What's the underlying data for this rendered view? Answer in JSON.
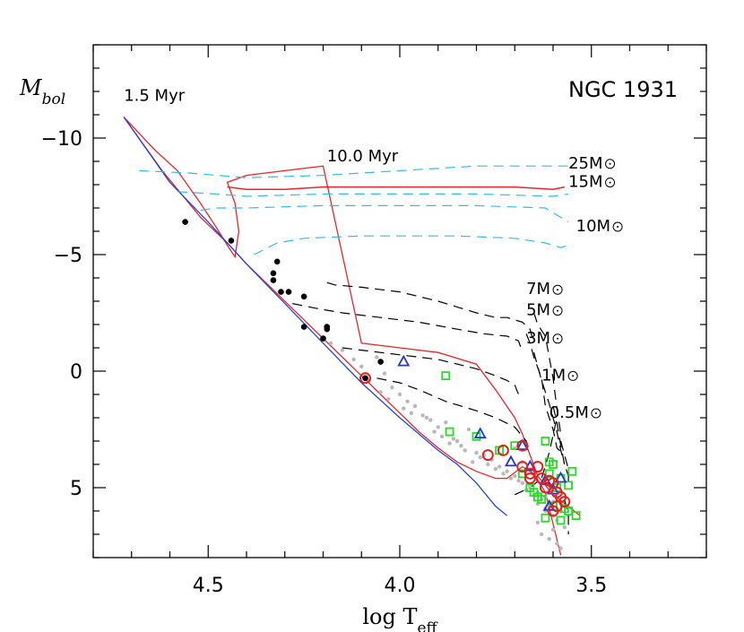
{
  "chart_data": {
    "type": "scatter",
    "title": "NGC 1931",
    "xlabel": "log T",
    "xlabel_sub": "eff",
    "ylabel": "M",
    "ylabel_sub": "bol",
    "xlim": [
      4.8,
      3.2
    ],
    "ylim": [
      8.0,
      -14.0
    ],
    "x_ticks": [
      "4.5",
      "4.0",
      "3.5"
    ],
    "y_ticks": [
      "−10",
      "−5",
      "0",
      "5"
    ],
    "grid": false,
    "colors": {
      "isochrone": "#e8262a",
      "zams": "#2244dd",
      "track_massive": "#33bbee",
      "track_pms": "#000000",
      "field": "#b8b8b8",
      "ms_star": "#000000",
      "open_circle": "#dd2222",
      "triangle": "#2233dd",
      "square": "#22dd22"
    },
    "isochrone_labels": [
      {
        "text": "1.5 Myr",
        "x": 4.72,
        "y": -11.6
      },
      {
        "text": "10.0 Myr",
        "x": 4.19,
        "y": -9.0
      }
    ],
    "mass_labels": [
      {
        "text": "25M",
        "x": 3.56,
        "y": -8.7
      },
      {
        "text": "15M",
        "x": 3.56,
        "y": -7.9
      },
      {
        "text": "10M",
        "x": 3.54,
        "y": -6.0
      },
      {
        "text": "7M",
        "x": 3.67,
        "y": -3.3
      },
      {
        "text": "5M",
        "x": 3.67,
        "y": -2.4
      },
      {
        "text": "3M",
        "x": 3.67,
        "y": -1.2
      },
      {
        "text": "1M",
        "x": 3.63,
        "y": 0.4
      },
      {
        "text": "0.5M",
        "x": 3.61,
        "y": 2.0
      }
    ],
    "series": [
      {
        "kind": "isochrone-1.5",
        "x": [
          4.72,
          4.62,
          4.52,
          4.45,
          4.4,
          4.35,
          4.3,
          4.25,
          4.2,
          4.15,
          4.1,
          4.05,
          4.0,
          3.95,
          3.9,
          3.85,
          3.8,
          3.75,
          3.72,
          3.68,
          3.65,
          3.62,
          3.58
        ],
        "y": [
          -10.9,
          -8.6,
          -6.6,
          -5.5,
          -4.6,
          -3.8,
          -3.0,
          -2.2,
          -1.4,
          -0.6,
          0.2,
          1.0,
          1.8,
          2.6,
          3.3,
          3.9,
          4.3,
          4.6,
          4.6,
          4.1,
          4.4,
          5.2,
          7.9
        ]
      },
      {
        "kind": "isochrone-10",
        "x": [
          4.72,
          4.64,
          4.58,
          4.52,
          4.48,
          4.45,
          4.43,
          4.42,
          4.43,
          4.45,
          4.4,
          4.3,
          4.2,
          4.1,
          4.0,
          3.9,
          3.8,
          3.75,
          3.7,
          3.68,
          3.66,
          3.64,
          3.6,
          3.56,
          3.53
        ],
        "y": [
          -10.9,
          -9.5,
          -8.6,
          -7.2,
          -6.2,
          -5.4,
          -4.9,
          -6.0,
          -7.2,
          -8.1,
          -8.4,
          -8.6,
          -8.8,
          -1.2,
          -1.0,
          -0.8,
          -0.3,
          0.8,
          2.0,
          2.7,
          3.6,
          4.5,
          5.3,
          5.8,
          6.2
        ]
      },
      {
        "kind": "isochrone-branch",
        "x": [
          4.45,
          4.4,
          4.3,
          4.2,
          4.1,
          4.0,
          3.9,
          3.8,
          3.7,
          3.6,
          3.57
        ],
        "y": [
          -7.9,
          -7.8,
          -7.8,
          -7.9,
          -7.9,
          -7.9,
          -7.9,
          -7.9,
          -7.9,
          -7.8,
          -7.9
        ]
      },
      {
        "kind": "zams",
        "x": [
          4.72,
          4.6,
          4.5,
          4.4,
          4.3,
          4.2,
          4.1,
          4.0,
          3.9,
          3.85,
          3.8,
          3.75,
          3.72
        ],
        "y": [
          -10.9,
          -8.1,
          -6.4,
          -4.6,
          -2.9,
          -1.2,
          0.5,
          2.0,
          3.4,
          4.0,
          4.8,
          5.8,
          6.2
        ]
      },
      {
        "kind": "track-massive",
        "x": [
          4.68,
          4.55,
          4.4,
          4.2,
          4.0,
          3.8,
          3.6,
          3.56
        ],
        "y": [
          -8.6,
          -8.5,
          -8.3,
          -8.4,
          -8.6,
          -8.8,
          -8.8,
          -8.8
        ]
      },
      {
        "kind": "track-massive",
        "x": [
          4.58,
          4.48,
          4.4,
          4.2,
          4.0,
          3.8,
          3.6,
          3.56
        ],
        "y": [
          -7.7,
          -7.6,
          -7.5,
          -7.6,
          -7.6,
          -7.6,
          -7.5,
          -7.6
        ]
      },
      {
        "kind": "track-massive",
        "x": [
          4.52,
          4.48,
          4.4,
          4.2,
          4.0,
          3.8,
          3.62,
          3.58,
          3.56
        ],
        "y": [
          -6.9,
          -7.0,
          -7.0,
          -7.1,
          -7.1,
          -7.1,
          -7.0,
          -6.6,
          -6.4
        ]
      },
      {
        "kind": "track-massive",
        "x": [
          4.38,
          4.32,
          4.25,
          4.1,
          4.0,
          3.85,
          3.7,
          3.62,
          3.58,
          3.56
        ],
        "y": [
          -5.0,
          -5.5,
          -5.7,
          -5.8,
          -5.8,
          -5.8,
          -5.7,
          -5.5,
          -5.3,
          -5.4
        ]
      },
      {
        "kind": "track-pms",
        "x": [
          4.19,
          4.17,
          4.1,
          4.0,
          3.9,
          3.8,
          3.75,
          3.72,
          3.68,
          3.66,
          3.65
        ],
        "y": [
          -3.8,
          -3.7,
          -3.6,
          -3.4,
          -3.0,
          -2.5,
          -2.3,
          -2.3,
          -2.1,
          -1.8,
          -1.2
        ]
      },
      {
        "kind": "track-pms",
        "x": [
          4.28,
          4.22,
          4.15,
          4.05,
          3.95,
          3.85,
          3.78,
          3.72,
          3.69,
          3.68
        ],
        "y": [
          -2.9,
          -2.7,
          -2.5,
          -2.3,
          -2.1,
          -1.8,
          -1.6,
          -1.5,
          -1.3,
          -0.8
        ]
      },
      {
        "kind": "track-pms",
        "x": [
          4.15,
          4.1,
          4.0,
          3.9,
          3.8,
          3.75,
          3.72,
          3.7,
          3.69
        ],
        "y": [
          -1.0,
          -0.9,
          -0.7,
          -0.5,
          -0.1,
          0.2,
          0.4,
          0.6,
          1.0
        ]
      },
      {
        "kind": "track-pms",
        "x": [
          4.06,
          4.0,
          3.95,
          3.88,
          3.8,
          3.75,
          3.7,
          3.67,
          3.66
        ],
        "y": [
          0.3,
          0.5,
          0.8,
          1.3,
          1.7,
          2.0,
          2.4,
          3.0,
          3.5
        ]
      },
      {
        "kind": "track-pms",
        "x": [
          3.7,
          3.66,
          3.63,
          3.61,
          3.59
        ],
        "y": [
          5.3,
          5.0,
          4.6,
          3.5,
          2.0
        ]
      },
      {
        "kind": "track-pms",
        "x": [
          3.67,
          3.66,
          3.65,
          3.63,
          3.62,
          3.6,
          3.59,
          3.57
        ],
        "y": [
          -1.6,
          -1.2,
          -0.6,
          0.3,
          1.5,
          2.5,
          3.3,
          3.6
        ]
      },
      {
        "kind": "track-pms",
        "x": [
          3.65,
          3.64,
          3.62,
          3.6,
          3.59,
          3.58
        ],
        "y": [
          -2.5,
          -2.0,
          -1.5,
          0.3,
          1.6,
          2.7
        ]
      },
      {
        "kind": "track-pms",
        "x": [
          3.65,
          3.63,
          3.61,
          3.59,
          3.58,
          3.57
        ],
        "y": [
          -0.8,
          0.4,
          1.4,
          2.6,
          3.4,
          4.0
        ]
      },
      {
        "kind": "track-pms",
        "x": [
          3.6,
          3.59,
          3.58,
          3.57,
          3.56
        ],
        "y": [
          1.5,
          2.2,
          3.2,
          4.0,
          4.5
        ]
      },
      {
        "kind": "track-pms",
        "x": [
          3.58,
          3.57,
          3.56,
          3.56
        ],
        "y": [
          3.0,
          3.6,
          4.2,
          4.8
        ]
      },
      {
        "kind": "track-pms",
        "x": [
          3.57,
          3.56,
          3.56
        ],
        "y": [
          5.5,
          6.2,
          7.0
        ]
      }
    ],
    "points": {
      "field": {
        "x": [
          4.18,
          4.15,
          4.12,
          4.1,
          4.08,
          4.06,
          4.04,
          4.02,
          4.0,
          3.98,
          3.96,
          3.94,
          3.92,
          3.9,
          3.88,
          3.86,
          3.84,
          3.82,
          3.8,
          3.78,
          3.76,
          3.74,
          3.72,
          3.7,
          3.68,
          3.66,
          3.64,
          3.62,
          3.6,
          3.58,
          4.05,
          4.03,
          3.99,
          3.97,
          3.93,
          3.91,
          3.89,
          3.87,
          3.85,
          3.83,
          3.81,
          3.79,
          3.77,
          3.75,
          3.73,
          3.71,
          3.69,
          3.67,
          3.65,
          3.63,
          3.61,
          3.59,
          3.57,
          3.62,
          3.64,
          3.6,
          3.63,
          3.61,
          3.59,
          3.58,
          3.62,
          3.6,
          3.64,
          3.66,
          3.68,
          3.7
        ],
        "y": [
          -1.2,
          -0.9,
          -0.5,
          -0.2,
          0.4,
          -0.6,
          0.1,
          0.7,
          1.0,
          1.3,
          1.5,
          1.9,
          2.1,
          2.4,
          2.2,
          2.9,
          3.2,
          2.5,
          3.5,
          3.6,
          3.8,
          4.1,
          4.3,
          4.5,
          4.8,
          5.0,
          5.2,
          5.4,
          5.6,
          6.0,
          0.9,
          1.2,
          1.6,
          1.8,
          2.0,
          2.6,
          2.8,
          3.1,
          3.0,
          3.4,
          3.9,
          3.7,
          4.0,
          4.2,
          4.4,
          4.6,
          4.7,
          5.1,
          5.3,
          5.5,
          5.8,
          6.4,
          6.7,
          6.0,
          6.5,
          6.8,
          7.0,
          7.2,
          7.4,
          7.6,
          5.9,
          6.2,
          5.7,
          4.9,
          3.9,
          3.3
        ]
      },
      "ms": {
        "x": [
          4.56,
          4.44,
          4.33,
          4.32,
          4.33,
          4.31,
          4.29,
          4.25,
          4.19,
          4.19,
          4.25,
          4.2,
          4.05,
          4.09
        ],
        "y": [
          -6.4,
          -5.6,
          -4.2,
          -4.7,
          -3.9,
          -3.4,
          -3.4,
          -3.2,
          -1.9,
          -1.8,
          -1.9,
          -1.4,
          -0.4,
          0.3
        ]
      },
      "circles": {
        "x": [
          4.09,
          3.77,
          3.73,
          3.68,
          3.66,
          3.64,
          3.63,
          3.61,
          3.62,
          3.6,
          3.59,
          3.58,
          3.57,
          3.6,
          3.59,
          3.66,
          3.68
        ],
        "y": [
          0.3,
          3.6,
          3.4,
          3.2,
          4.4,
          4.1,
          4.6,
          4.7,
          5.0,
          4.8,
          5.2,
          5.4,
          5.6,
          6.0,
          5.8,
          4.6,
          4.1
        ]
      },
      "triangles": {
        "x": [
          3.99,
          3.79,
          3.68,
          3.62,
          3.6,
          3.58,
          3.61,
          3.71,
          3.66
        ],
        "y": [
          -0.4,
          2.7,
          3.2,
          4.7,
          5.1,
          4.6,
          5.8,
          3.9,
          4.1
        ]
      },
      "squares": {
        "x": [
          3.88,
          3.87,
          3.8,
          3.74,
          3.62,
          3.61,
          3.6,
          3.68,
          3.66,
          3.64,
          3.58,
          3.56,
          3.55,
          3.6,
          3.62,
          3.56,
          3.58,
          3.63,
          3.65,
          3.59,
          3.61,
          3.7,
          3.54,
          3.57
        ],
        "y": [
          0.2,
          2.6,
          2.8,
          3.4,
          3.0,
          3.9,
          4.0,
          4.4,
          5.0,
          5.4,
          4.6,
          4.9,
          4.3,
          5.8,
          6.3,
          6.0,
          6.4,
          5.5,
          5.2,
          5.0,
          4.4,
          3.2,
          6.2,
          5.9
        ]
      }
    }
  }
}
